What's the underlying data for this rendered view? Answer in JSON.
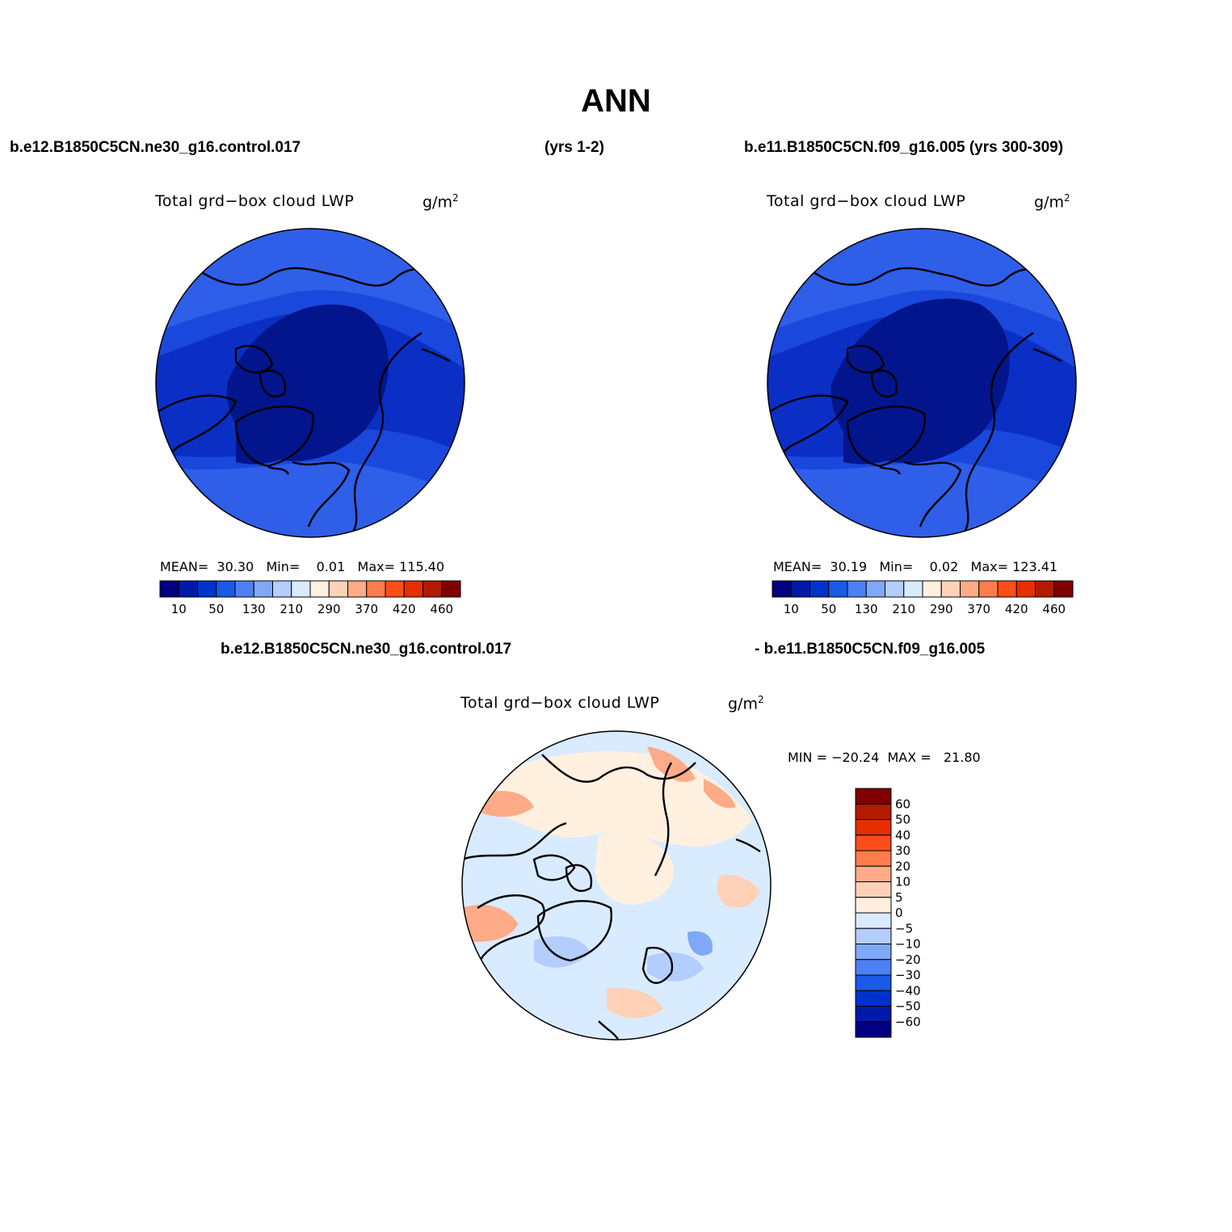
{
  "figure": {
    "title": "ANN",
    "case1_label": "b.e12.B1850C5CN.ne30_g16.control.017",
    "case1_years": "(yrs 1-2)",
    "case2_label": "b.e11.B1850C5CN.f09_g16.005 (yrs 300-309)",
    "diff_label_left": "b.e12.B1850C5CN.ne30_g16.control.017",
    "diff_label_right": "- b.e11.B1850C5CN.f09_g16.005"
  },
  "panels": [
    {
      "variable": "Total grd−box cloud LWP",
      "units": "g/m",
      "units_sup": "2",
      "stats": {
        "mean_label": "MEAN=",
        "mean": "30.30",
        "min_label": "Min=",
        "min": "0.01",
        "max_label": "Max=",
        "max": "115.40"
      }
    },
    {
      "variable": "Total grd−box cloud LWP",
      "units": "g/m",
      "units_sup": "2",
      "stats": {
        "mean_label": "MEAN=",
        "mean": "30.19",
        "min_label": "Min=",
        "min": "0.02",
        "max_label": "Max=",
        "max": "123.41"
      }
    },
    {
      "variable": "Total grd−box cloud LWP",
      "units": "g/m",
      "units_sup": "2",
      "stats_text": "MIN = −20.24  MAX =   21.80"
    }
  ],
  "colorbars": {
    "abs": {
      "colors": [
        "#000080",
        "#001aa8",
        "#0033cc",
        "#1a5ae6",
        "#4d80f5",
        "#80a8f8",
        "#b3cdfc",
        "#d9ebff",
        "#fff0e0",
        "#ffd2b8",
        "#ffab87",
        "#ff7d4d",
        "#ff4d1a",
        "#e62e00",
        "#b31a00",
        "#800000"
      ],
      "tick_labels": [
        "10",
        "50",
        "130",
        "210",
        "290",
        "370",
        "420",
        "460"
      ]
    },
    "diff": {
      "colors_top_to_bottom": [
        "#800000",
        "#b31a00",
        "#e62e00",
        "#ff4d1a",
        "#ff7d4d",
        "#ffab87",
        "#ffd2b8",
        "#fff0e0",
        "#d9ebff",
        "#b3cdfc",
        "#80a8f8",
        "#4d80f5",
        "#1a5ae6",
        "#0033cc",
        "#001aa8",
        "#000080"
      ],
      "tick_labels": [
        "60",
        "50",
        "40",
        "30",
        "20",
        "10",
        "5",
        "0",
        "−5",
        "−10",
        "−20",
        "−30",
        "−40",
        "−50",
        "−60"
      ]
    }
  }
}
